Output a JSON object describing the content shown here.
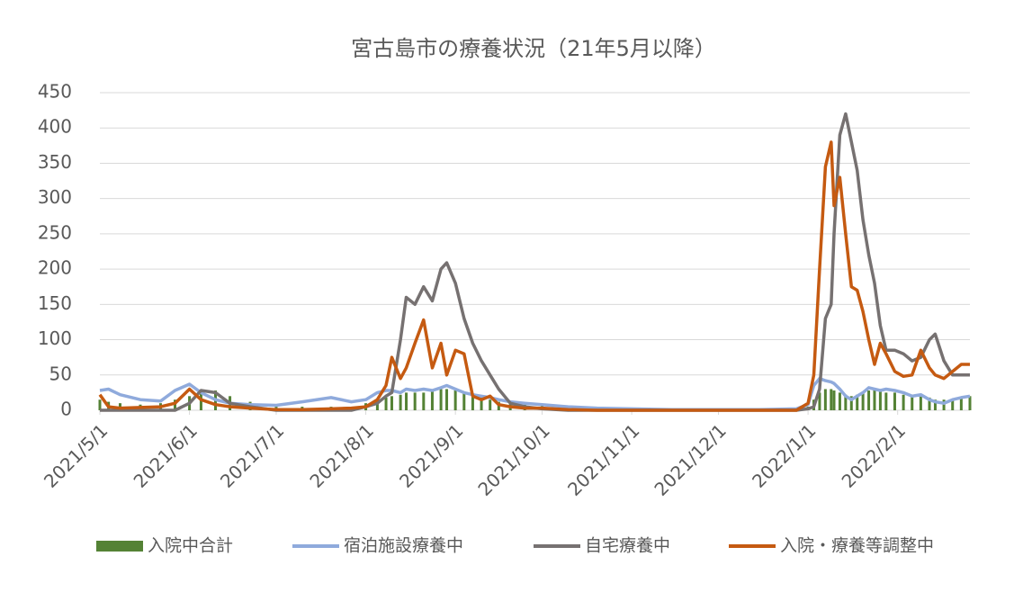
{
  "chart_data": {
    "type": "line",
    "title": "宮古島市の療養状況（21年5月以降）",
    "x": [
      "2021/5/1",
      "2021/5/4",
      "2021/5/8",
      "2021/5/15",
      "2021/5/22",
      "2021/5/27",
      "2021/6/1",
      "2021/6/5",
      "2021/6/10",
      "2021/6/15",
      "2021/6/22",
      "2021/7/1",
      "2021/7/10",
      "2021/7/20",
      "2021/7/27",
      "2021/8/1",
      "2021/8/5",
      "2021/8/8",
      "2021/8/10",
      "2021/8/13",
      "2021/8/15",
      "2021/8/18",
      "2021/8/21",
      "2021/8/24",
      "2021/8/27",
      "2021/8/29",
      "2021/9/1",
      "2021/9/4",
      "2021/9/7",
      "2021/9/10",
      "2021/9/13",
      "2021/9/16",
      "2021/9/20",
      "2021/9/25",
      "2021/10/1",
      "2021/10/10",
      "2021/10/20",
      "2021/11/1",
      "2021/11/15",
      "2021/12/1",
      "2021/12/15",
      "2021/12/28",
      "2022/1/1",
      "2022/1/3",
      "2022/1/5",
      "2022/1/7",
      "2022/1/9",
      "2022/1/10",
      "2022/1/12",
      "2022/1/14",
      "2022/1/16",
      "2022/1/18",
      "2022/1/20",
      "2022/1/22",
      "2022/1/24",
      "2022/1/26",
      "2022/1/28",
      "2022/1/31",
      "2022/2/3",
      "2022/2/6",
      "2022/2/9",
      "2022/2/12",
      "2022/2/14",
      "2022/2/17",
      "2022/2/20",
      "2022/2/23",
      "2022/2/26"
    ],
    "series": [
      {
        "name": "入院中合計",
        "type": "bar",
        "color": "#548235",
        "values": [
          15,
          12,
          10,
          8,
          10,
          15,
          20,
          25,
          28,
          20,
          12,
          8,
          5,
          5,
          5,
          10,
          15,
          18,
          20,
          22,
          25,
          25,
          25,
          28,
          30,
          30,
          28,
          25,
          20,
          18,
          15,
          12,
          10,
          8,
          6,
          4,
          3,
          2,
          1,
          1,
          1,
          2,
          5,
          15,
          25,
          30,
          30,
          28,
          25,
          22,
          20,
          22,
          25,
          28,
          30,
          28,
          25,
          25,
          22,
          20,
          22,
          18,
          15,
          15,
          15,
          18,
          20
        ]
      },
      {
        "name": "宿泊施設療養中",
        "type": "line",
        "color": "#8faadc",
        "values": [
          28,
          30,
          22,
          15,
          13,
          28,
          37,
          25,
          15,
          10,
          8,
          7,
          12,
          18,
          12,
          15,
          25,
          28,
          28,
          25,
          30,
          28,
          30,
          28,
          32,
          35,
          30,
          25,
          22,
          20,
          18,
          15,
          12,
          10,
          8,
          5,
          3,
          2,
          1,
          1,
          1,
          2,
          8,
          35,
          45,
          42,
          40,
          38,
          30,
          20,
          15,
          20,
          25,
          32,
          30,
          28,
          30,
          28,
          25,
          20,
          22,
          15,
          12,
          10,
          15,
          18,
          20
        ]
      },
      {
        "name": "自宅療養中",
        "type": "line",
        "color": "#767171",
        "values": [
          0,
          0,
          0,
          0,
          0,
          0,
          10,
          28,
          25,
          10,
          5,
          0,
          0,
          0,
          0,
          5,
          10,
          20,
          25,
          100,
          160,
          150,
          175,
          155,
          200,
          209,
          180,
          130,
          95,
          70,
          50,
          30,
          10,
          5,
          2,
          0,
          0,
          0,
          0,
          0,
          0,
          0,
          2,
          5,
          30,
          130,
          150,
          250,
          390,
          420,
          380,
          340,
          270,
          220,
          180,
          120,
          85,
          85,
          80,
          70,
          75,
          100,
          108,
          70,
          50,
          50,
          50
        ]
      },
      {
        "name": "入院・療養等調整中",
        "type": "line",
        "color": "#c55a11",
        "values": [
          22,
          5,
          3,
          4,
          5,
          10,
          30,
          15,
          8,
          5,
          3,
          1,
          1,
          2,
          3,
          5,
          15,
          35,
          75,
          45,
          60,
          95,
          128,
          60,
          95,
          50,
          85,
          80,
          20,
          15,
          20,
          8,
          5,
          3,
          3,
          1,
          0,
          0,
          0,
          0,
          0,
          0,
          10,
          50,
          200,
          345,
          380,
          290,
          330,
          250,
          175,
          170,
          140,
          100,
          65,
          95,
          80,
          55,
          48,
          50,
          85,
          60,
          50,
          45,
          55,
          65,
          65
        ]
      }
    ],
    "xlim": [
      "2021/5/1",
      "2022/2/26"
    ],
    "xticks": [
      "2021/5/1",
      "2021/6/1",
      "2021/7/1",
      "2021/8/1",
      "2021/9/1",
      "2021/10/1",
      "2021/11/1",
      "2021/12/1",
      "2022/1/1",
      "2022/2/1"
    ],
    "ylim": [
      0,
      450
    ],
    "yticks": [
      0,
      50,
      100,
      150,
      200,
      250,
      300,
      350,
      400,
      450
    ],
    "grid": true,
    "legend": "bottom"
  }
}
